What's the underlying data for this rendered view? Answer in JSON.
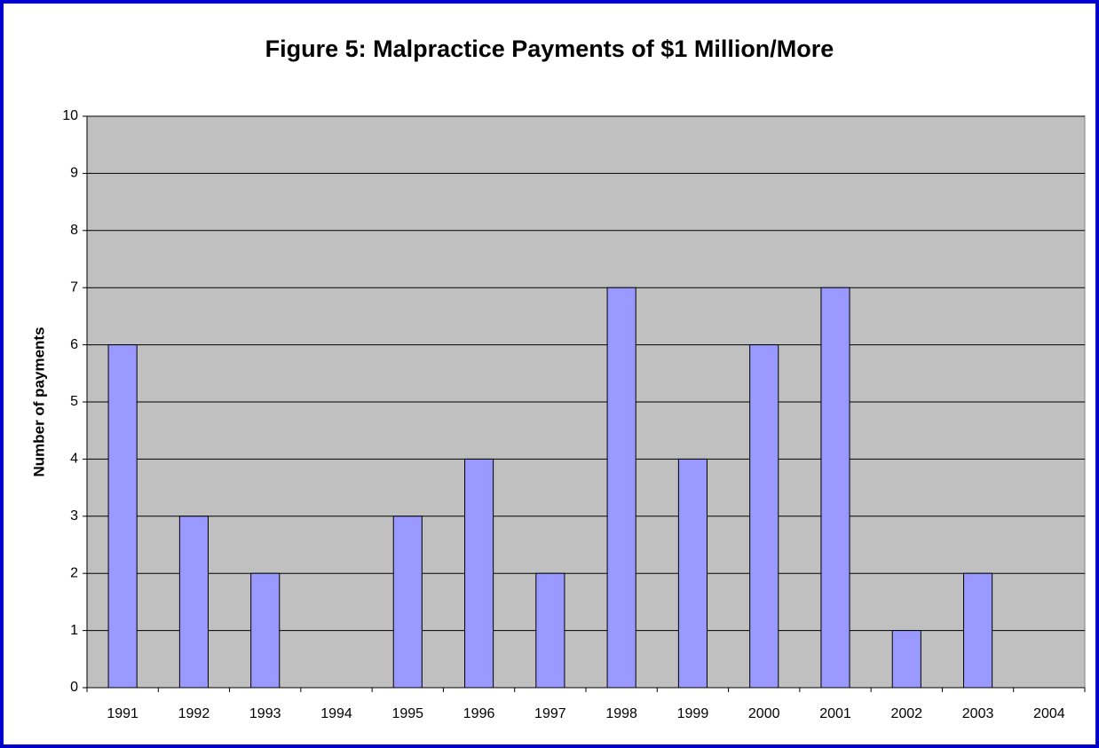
{
  "chart_data": {
    "type": "bar",
    "title": "Figure 5: Malpractice Payments of $1 Million/More",
    "ylabel": "Number of payments",
    "categories": [
      "1991",
      "1992",
      "1993",
      "1994",
      "1995",
      "1996",
      "1997",
      "1998",
      "1999",
      "2000",
      "2001",
      "2002",
      "2003",
      "2004"
    ],
    "values": [
      6,
      3,
      2,
      0,
      3,
      4,
      2,
      7,
      4,
      6,
      7,
      1,
      2,
      0
    ],
    "color": "#9999ff",
    "ylim": [
      0,
      10
    ],
    "yticks": [
      0,
      1,
      2,
      3,
      4,
      5,
      6,
      7,
      8,
      9,
      10
    ],
    "grid": true
  }
}
